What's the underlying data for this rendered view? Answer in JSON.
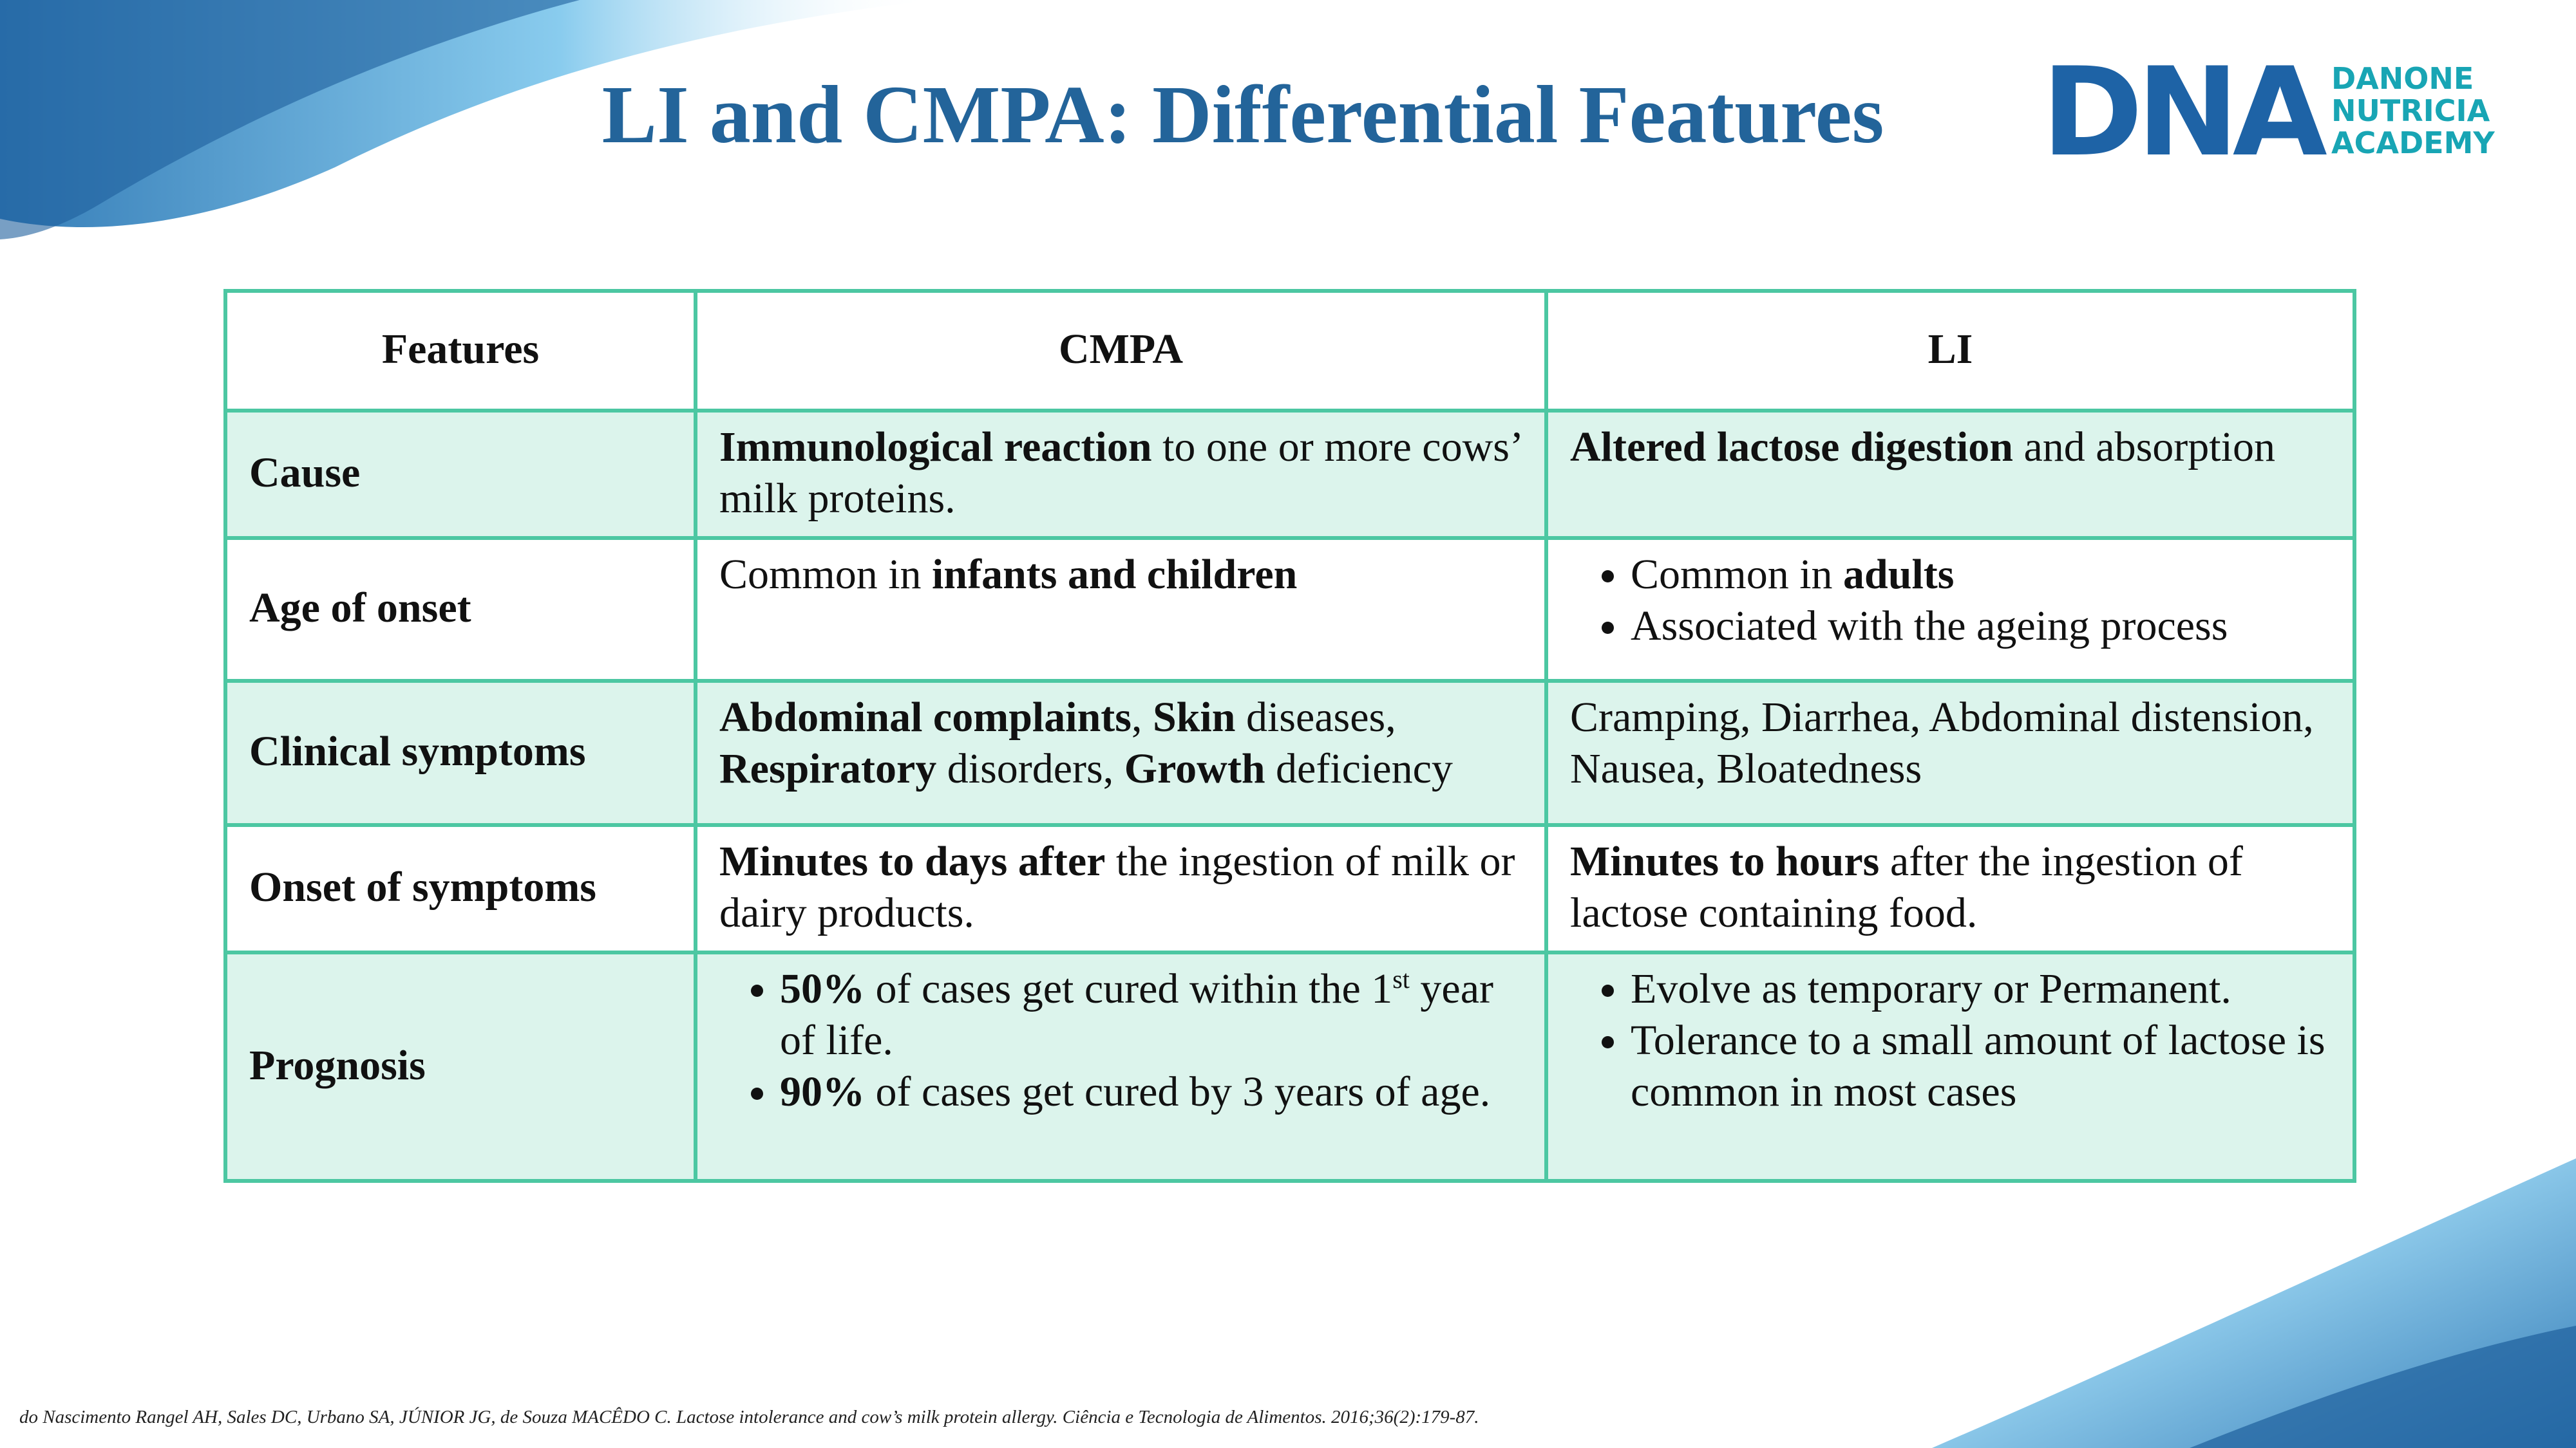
{
  "header": {
    "title": "LI and CMPA: Differential Features",
    "logo": {
      "mark": "DNA",
      "lines": [
        "DANONE",
        "NUTRICIA",
        "ACADEMY"
      ]
    }
  },
  "table": {
    "columns": [
      "Features",
      "CMPA",
      "LI"
    ],
    "rows": [
      [
        "Cause",
        {
          "list": false,
          "items": [
            [
              {
                "text": "Immunological reaction",
                "bold": true
              },
              {
                "text": " to one or more cows’ milk proteins."
              }
            ]
          ]
        },
        {
          "list": false,
          "items": [
            [
              {
                "text": "Altered lactose digestion",
                "bold": true
              },
              {
                "text": " and absorption"
              }
            ]
          ]
        }
      ],
      [
        "Age of onset",
        {
          "list": false,
          "items": [
            [
              {
                "text": "Common in "
              },
              {
                "text": "infants and children",
                "bold": true
              }
            ]
          ]
        },
        {
          "list": true,
          "items": [
            [
              {
                "text": "Common in "
              },
              {
                "text": "adults",
                "bold": true
              }
            ],
            [
              {
                "text": "Associated with the ageing process"
              }
            ]
          ]
        }
      ],
      [
        "Clinical symptoms",
        {
          "list": false,
          "items": [
            [
              {
                "text": "Abdominal complaints",
                "bold": true
              },
              {
                "text": ", "
              },
              {
                "text": "Skin",
                "bold": true
              },
              {
                "text": " diseases, "
              },
              {
                "text": "Respiratory",
                "bold": true
              },
              {
                "text": " disorders, "
              },
              {
                "text": "Growth",
                "bold": true
              },
              {
                "text": " deficiency"
              }
            ]
          ]
        },
        {
          "list": false,
          "items": [
            [
              {
                "text": "Cramping, Diarrhea, Abdominal distension, Nausea, Bloatedness"
              }
            ]
          ]
        }
      ],
      [
        "Onset of symptoms",
        {
          "list": false,
          "items": [
            [
              {
                "text": "Minutes to days after",
                "bold": true
              },
              {
                "text": " the ingestion of milk or dairy products."
              }
            ]
          ]
        },
        {
          "list": false,
          "items": [
            [
              {
                "text": "Minutes to hours",
                "bold": true
              },
              {
                "text": " after the ingestion of lactose containing food."
              }
            ]
          ]
        }
      ],
      [
        "Prognosis",
        {
          "list": true,
          "items": [
            [
              {
                "text": "50%",
                "bold": true
              },
              {
                "text": " of cases get cured within the 1"
              },
              {
                "text": "st",
                "sup": true
              },
              {
                "text": " year of life."
              }
            ],
            [
              {
                "text": "90%",
                "bold": true
              },
              {
                "text": " of cases get cured by 3 years of age."
              }
            ]
          ]
        },
        {
          "list": true,
          "items": [
            [
              {
                "text": "Evolve as temporary or Permanent."
              }
            ],
            [
              {
                "text": "Tolerance to a small amount of lactose is common in most cases"
              }
            ]
          ]
        }
      ]
    ]
  },
  "footer": {
    "citation": "do Nascimento Rangel AH, Sales DC, Urbano SA, JÚNIOR JG, de Souza MACÊDO C. Lactose intolerance and cow’s milk protein allergy. Ciência e Tecnologia de Alimentos. 2016;36(2):179-87."
  }
}
